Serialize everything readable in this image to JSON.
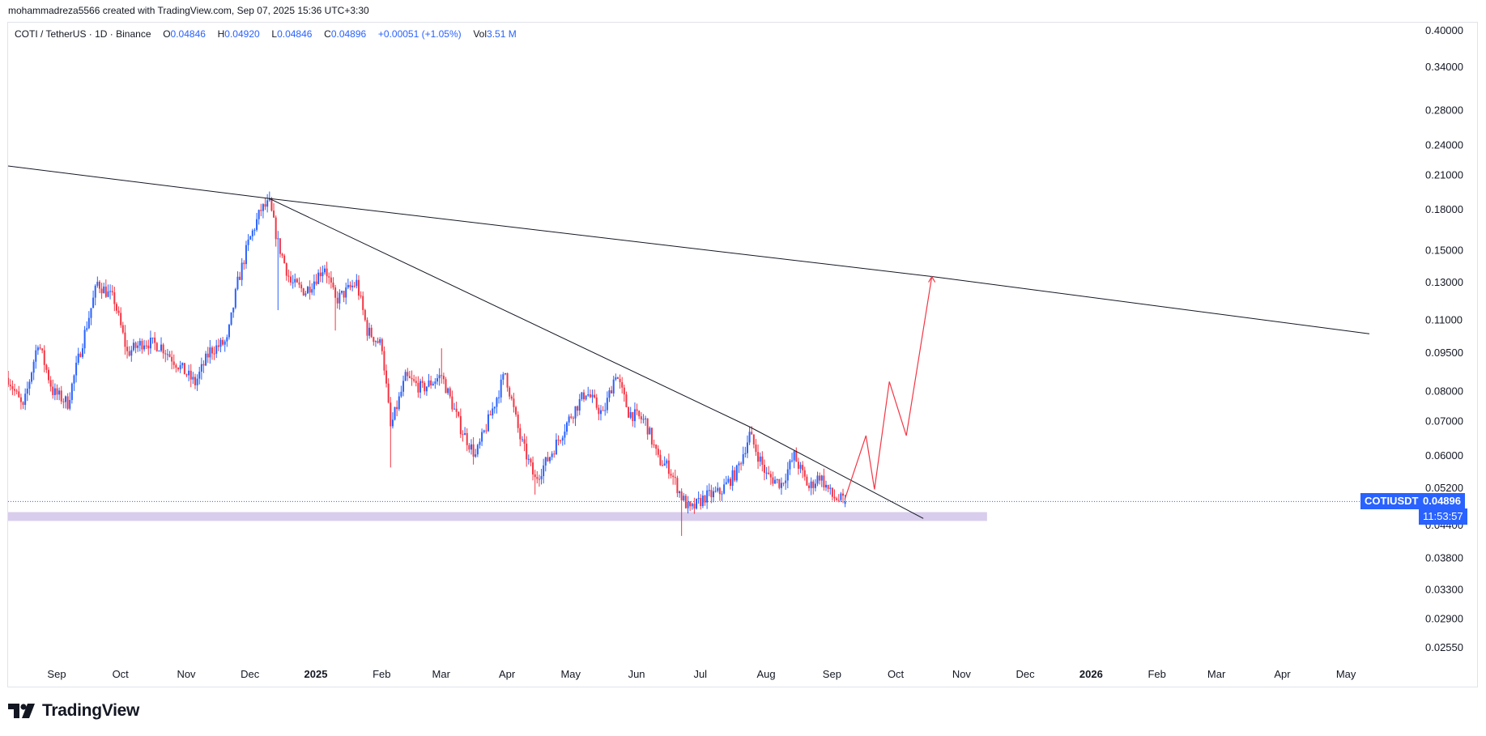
{
  "header": {
    "credit": "mohammadreza5566 created with TradingView.com, Sep 07, 2025 15:36 UTC+3:30"
  },
  "legend": {
    "symbol": "COTI / TetherUS · 1D · Binance",
    "open_label": "O",
    "open": "0.04846",
    "high_label": "H",
    "high": "0.04920",
    "low_label": "L",
    "low": "0.04846",
    "close_label": "C",
    "close": "0.04896",
    "change": "+0.00051 (+1.05%)",
    "vol_label": "Vol",
    "vol": "3.51 M"
  },
  "price_badge": {
    "ticker": "COTIUSDT",
    "price": "0.04896",
    "countdown": "11:53:57"
  },
  "brand": {
    "name": "TradingView"
  },
  "colors": {
    "up": "#2962ff",
    "down": "#f23645",
    "zone": "#d1c4e9",
    "projection": "#f23645",
    "trendline": "#131722",
    "badge": "#2962ff"
  },
  "chart_data": {
    "type": "candlestick",
    "symbol": "COTIUSDT",
    "timeframe": "1D",
    "scale": "log",
    "y_ticks": [
      0.4,
      0.34,
      0.28,
      0.24,
      0.21,
      0.18,
      0.15,
      0.13,
      0.11,
      0.095,
      0.08,
      0.07,
      0.06,
      0.052,
      0.044,
      0.038,
      0.033,
      0.029,
      0.0255
    ],
    "y_tick_labels": [
      "0.40000",
      "0.34000",
      "0.28000",
      "0.24000",
      "0.21000",
      "0.18000",
      "0.15000",
      "0.13000",
      "0.11000",
      "0.09500",
      "0.08000",
      "0.07000",
      "0.06000",
      "0.05200",
      "0.04400",
      "0.03800",
      "0.03300",
      "0.02900",
      "0.02550"
    ],
    "x_labels": [
      {
        "label": "Sep",
        "date": "2024-09-01",
        "bold": false
      },
      {
        "label": "Oct",
        "date": "2024-10-01",
        "bold": false
      },
      {
        "label": "Nov",
        "date": "2024-11-01",
        "bold": false
      },
      {
        "label": "Dec",
        "date": "2024-12-01",
        "bold": false
      },
      {
        "label": "2025",
        "date": "2025-01-01",
        "bold": true
      },
      {
        "label": "Feb",
        "date": "2025-02-01",
        "bold": false
      },
      {
        "label": "Mar",
        "date": "2025-03-01",
        "bold": false
      },
      {
        "label": "Apr",
        "date": "2025-04-01",
        "bold": false
      },
      {
        "label": "May",
        "date": "2025-05-01",
        "bold": false
      },
      {
        "label": "Jun",
        "date": "2025-06-01",
        "bold": false
      },
      {
        "label": "Jul",
        "date": "2025-07-01",
        "bold": false
      },
      {
        "label": "Aug",
        "date": "2025-08-01",
        "bold": false
      },
      {
        "label": "Sep",
        "date": "2025-09-01",
        "bold": false
      },
      {
        "label": "Oct",
        "date": "2025-10-01",
        "bold": false
      },
      {
        "label": "Nov",
        "date": "2025-11-01",
        "bold": false
      },
      {
        "label": "Dec",
        "date": "2025-12-01",
        "bold": false
      },
      {
        "label": "2026",
        "date": "2026-01-01",
        "bold": true
      },
      {
        "label": "Feb",
        "date": "2026-02-01",
        "bold": false
      },
      {
        "label": "Mar",
        "date": "2026-03-01",
        "bold": false
      },
      {
        "label": "Apr",
        "date": "2026-04-01",
        "bold": false
      },
      {
        "label": "May",
        "date": "2026-05-01",
        "bold": false
      }
    ],
    "price_path": {
      "start_date": "2024-08-09",
      "end_date": "2025-09-07",
      "anchors": [
        [
          "2024-08-09",
          0.085
        ],
        [
          "2024-08-16",
          0.074
        ],
        [
          "2024-08-23",
          0.1
        ],
        [
          "2024-08-30",
          0.08
        ],
        [
          "2024-09-06",
          0.076
        ],
        [
          "2024-09-13",
          0.1
        ],
        [
          "2024-09-20",
          0.13
        ],
        [
          "2024-09-28",
          0.12
        ],
        [
          "2024-10-04",
          0.095
        ],
        [
          "2024-10-12",
          0.1
        ],
        [
          "2024-10-20",
          0.098
        ],
        [
          "2024-10-27",
          0.091
        ],
        [
          "2024-11-05",
          0.083
        ],
        [
          "2024-11-12",
          0.096
        ],
        [
          "2024-11-20",
          0.1
        ],
        [
          "2024-11-25",
          0.13
        ],
        [
          "2024-11-30",
          0.155
        ],
        [
          "2024-12-06",
          0.18
        ],
        [
          "2024-12-10",
          0.185
        ],
        [
          "2024-12-14",
          0.155
        ],
        [
          "2024-12-20",
          0.13
        ],
        [
          "2024-12-27",
          0.125
        ],
        [
          "2025-01-05",
          0.14
        ],
        [
          "2025-01-10",
          0.12
        ],
        [
          "2025-01-20",
          0.13
        ],
        [
          "2025-01-25",
          0.105
        ],
        [
          "2025-02-01",
          0.098
        ],
        [
          "2025-02-05",
          0.068
        ],
        [
          "2025-02-12",
          0.085
        ],
        [
          "2025-02-20",
          0.081
        ],
        [
          "2025-03-01",
          0.086
        ],
        [
          "2025-03-10",
          0.068
        ],
        [
          "2025-03-17",
          0.06
        ],
        [
          "2025-03-24",
          0.072
        ],
        [
          "2025-03-31",
          0.087
        ],
        [
          "2025-04-07",
          0.065
        ],
        [
          "2025-04-14",
          0.054
        ],
        [
          "2025-04-21",
          0.06
        ],
        [
          "2025-05-01",
          0.072
        ],
        [
          "2025-05-08",
          0.08
        ],
        [
          "2025-05-16",
          0.072
        ],
        [
          "2025-05-22",
          0.087
        ],
        [
          "2025-05-28",
          0.073
        ],
        [
          "2025-06-05",
          0.07
        ],
        [
          "2025-06-11",
          0.059
        ],
        [
          "2025-06-16",
          0.057
        ],
        [
          "2025-06-22",
          0.05
        ],
        [
          "2025-06-26",
          0.047
        ],
        [
          "2025-07-03",
          0.05
        ],
        [
          "2025-07-10",
          0.051
        ],
        [
          "2025-07-18",
          0.056
        ],
        [
          "2025-07-24",
          0.066
        ],
        [
          "2025-08-01",
          0.055
        ],
        [
          "2025-08-08",
          0.053
        ],
        [
          "2025-08-14",
          0.06
        ],
        [
          "2025-08-21",
          0.052
        ],
        [
          "2025-08-26",
          0.055
        ],
        [
          "2025-09-01",
          0.05
        ],
        [
          "2025-09-07",
          0.04896
        ]
      ]
    },
    "trendlines": [
      {
        "name": "long-term-resistance",
        "points": [
          [
            "2024-08-09",
            0.2188
          ],
          [
            "2024-12-10",
            0.1893
          ],
          [
            "2025-10-18",
            0.1336
          ],
          [
            "2026-05-12",
            0.1035
          ]
        ]
      },
      {
        "name": "short-term-resistance",
        "points": [
          [
            "2024-12-10",
            0.1893
          ],
          [
            "2025-07-24",
            0.0684
          ],
          [
            "2025-10-14",
            0.0454
          ]
        ]
      }
    ],
    "support_zone": {
      "start": "2024-08-09",
      "end": "2025-11-13",
      "top": 0.0467,
      "bottom": 0.0449
    },
    "projection_path": [
      [
        "2025-09-07",
        0.0494
      ],
      [
        "2025-09-17",
        0.0657
      ],
      [
        "2025-09-21",
        0.0517
      ],
      [
        "2025-09-28",
        0.0836
      ],
      [
        "2025-10-06",
        0.0657
      ],
      [
        "2025-10-18",
        0.1336
      ]
    ],
    "current_price": 0.04896
  }
}
